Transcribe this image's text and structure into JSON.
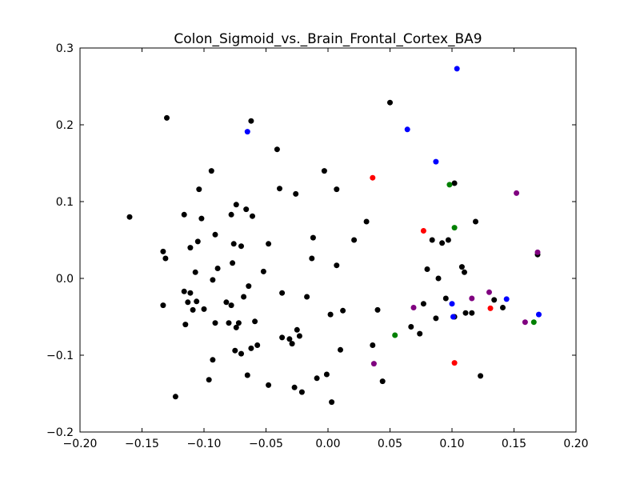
{
  "chart_data": {
    "type": "scatter",
    "title": "Colon_Sigmoid_vs._Brain_Frontal_Cortex_BA9",
    "xlabel": "",
    "ylabel": "",
    "xlim": [
      -0.2,
      0.2
    ],
    "ylim": [
      -0.2,
      0.3
    ],
    "xticks": [
      "−0.20",
      "−0.15",
      "−0.10",
      "−0.05",
      "0.00",
      "0.05",
      "0.10",
      "0.15",
      "0.20"
    ],
    "xtick_values": [
      -0.2,
      -0.15,
      -0.1,
      -0.05,
      0.0,
      0.05,
      0.1,
      0.15,
      0.2
    ],
    "yticks": [
      "−0.2",
      "−0.1",
      "0.0",
      "0.1",
      "0.2",
      "0.3"
    ],
    "ytick_values": [
      -0.2,
      -0.1,
      0.0,
      0.1,
      0.2,
      0.3
    ],
    "grid": false,
    "series": [
      {
        "color": "#000000",
        "points": [
          [
            -0.16,
            0.08
          ],
          [
            -0.13,
            0.209
          ],
          [
            -0.133,
            0.035
          ],
          [
            -0.131,
            0.026
          ],
          [
            -0.133,
            -0.035
          ],
          [
            -0.123,
            -0.154
          ],
          [
            -0.116,
            0.083
          ],
          [
            -0.116,
            -0.017
          ],
          [
            -0.115,
            -0.06
          ],
          [
            -0.113,
            -0.031
          ],
          [
            -0.111,
            0.04
          ],
          [
            -0.111,
            -0.019
          ],
          [
            -0.109,
            -0.041
          ],
          [
            -0.107,
            0.008
          ],
          [
            -0.105,
            0.048
          ],
          [
            -0.106,
            -0.03
          ],
          [
            -0.104,
            0.116
          ],
          [
            -0.102,
            0.078
          ],
          [
            -0.1,
            -0.04
          ],
          [
            -0.096,
            -0.132
          ],
          [
            -0.094,
            0.14
          ],
          [
            -0.093,
            -0.002
          ],
          [
            -0.093,
            -0.106
          ],
          [
            -0.091,
            0.057
          ],
          [
            -0.091,
            -0.058
          ],
          [
            -0.089,
            0.013
          ],
          [
            -0.082,
            -0.031
          ],
          [
            -0.08,
            -0.058
          ],
          [
            -0.078,
            0.083
          ],
          [
            -0.078,
            -0.035
          ],
          [
            -0.076,
            0.045
          ],
          [
            -0.077,
            0.02
          ],
          [
            -0.075,
            -0.094
          ],
          [
            -0.074,
            0.096
          ],
          [
            -0.074,
            -0.064
          ],
          [
            -0.072,
            -0.058
          ],
          [
            -0.07,
            0.042
          ],
          [
            -0.07,
            -0.098
          ],
          [
            -0.068,
            -0.024
          ],
          [
            -0.066,
            0.09
          ],
          [
            -0.065,
            -0.126
          ],
          [
            -0.064,
            -0.01
          ],
          [
            -0.062,
            0.205
          ],
          [
            -0.062,
            -0.091
          ],
          [
            -0.061,
            0.081
          ],
          [
            -0.059,
            -0.056
          ],
          [
            -0.057,
            -0.087
          ],
          [
            -0.052,
            0.009
          ],
          [
            -0.048,
            0.045
          ],
          [
            -0.048,
            -0.139
          ],
          [
            -0.041,
            0.168
          ],
          [
            -0.039,
            0.117
          ],
          [
            -0.037,
            -0.019
          ],
          [
            -0.037,
            -0.077
          ],
          [
            -0.031,
            -0.079
          ],
          [
            -0.029,
            -0.085
          ],
          [
            -0.027,
            -0.142
          ],
          [
            -0.026,
            0.11
          ],
          [
            -0.025,
            -0.067
          ],
          [
            -0.023,
            -0.075
          ],
          [
            -0.021,
            -0.148
          ],
          [
            -0.017,
            -0.024
          ],
          [
            -0.013,
            0.026
          ],
          [
            -0.012,
            0.053
          ],
          [
            -0.009,
            -0.13
          ],
          [
            -0.003,
            0.14
          ],
          [
            -0.001,
            -0.125
          ],
          [
            0.002,
            -0.047
          ],
          [
            0.003,
            -0.161
          ],
          [
            0.007,
            0.116
          ],
          [
            0.007,
            0.017
          ],
          [
            0.01,
            -0.093
          ],
          [
            0.012,
            -0.042
          ],
          [
            0.021,
            0.05
          ],
          [
            0.031,
            0.074
          ],
          [
            0.036,
            -0.087
          ],
          [
            0.04,
            -0.041
          ],
          [
            0.044,
            -0.134
          ],
          [
            0.05,
            0.229
          ],
          [
            0.067,
            -0.063
          ],
          [
            0.074,
            -0.072
          ],
          [
            0.077,
            -0.033
          ],
          [
            0.08,
            0.012
          ],
          [
            0.084,
            0.05
          ],
          [
            0.087,
            -0.052
          ],
          [
            0.089,
            0.0
          ],
          [
            0.092,
            0.046
          ],
          [
            0.095,
            -0.026
          ],
          [
            0.097,
            0.05
          ],
          [
            0.102,
            0.124
          ],
          [
            0.102,
            -0.05
          ],
          [
            0.108,
            0.015
          ],
          [
            0.11,
            0.008
          ],
          [
            0.111,
            -0.045
          ],
          [
            0.116,
            -0.045
          ],
          [
            0.119,
            0.074
          ],
          [
            0.123,
            -0.127
          ],
          [
            0.134,
            -0.028
          ],
          [
            0.141,
            -0.038
          ],
          [
            0.169,
            0.031
          ]
        ]
      },
      {
        "color": "#0000ff",
        "points": [
          [
            -0.065,
            0.191
          ],
          [
            0.064,
            0.194
          ],
          [
            0.087,
            0.152
          ],
          [
            0.104,
            0.273
          ],
          [
            0.1,
            -0.033
          ],
          [
            0.101,
            -0.05
          ],
          [
            0.144,
            -0.027
          ],
          [
            0.17,
            -0.047
          ]
        ]
      },
      {
        "color": "#ff0000",
        "points": [
          [
            0.036,
            0.131
          ],
          [
            0.077,
            0.062
          ],
          [
            0.102,
            -0.11
          ],
          [
            0.131,
            -0.039
          ]
        ]
      },
      {
        "color": "#008000",
        "points": [
          [
            0.054,
            -0.074
          ],
          [
            0.098,
            0.122
          ],
          [
            0.102,
            0.066
          ],
          [
            0.166,
            -0.057
          ]
        ]
      },
      {
        "color": "#800080",
        "points": [
          [
            0.037,
            -0.111
          ],
          [
            0.069,
            -0.038
          ],
          [
            0.116,
            -0.026
          ],
          [
            0.13,
            -0.018
          ],
          [
            0.152,
            0.111
          ],
          [
            0.159,
            -0.057
          ],
          [
            0.169,
            0.034
          ]
        ]
      }
    ]
  }
}
